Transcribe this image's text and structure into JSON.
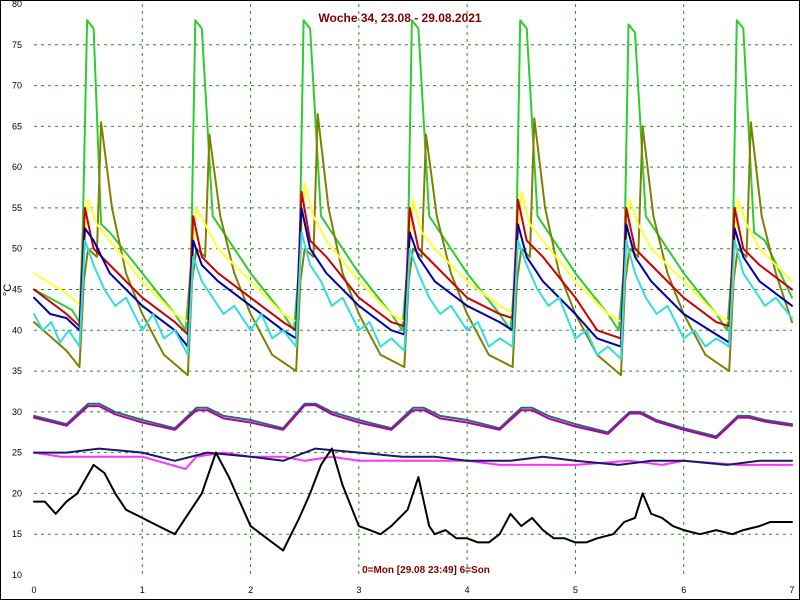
{
  "chart_data": {
    "type": "line",
    "title": "Woche 34, 23.08 - 29.08.2021",
    "xlabel": "0=Mon [29.08 23:49] 6=Son",
    "ylabel": "°C",
    "xlim": [
      0,
      7
    ],
    "ylim": [
      10,
      80
    ],
    "xticks": [
      0,
      1,
      2,
      3,
      4,
      5,
      6,
      7
    ],
    "yticks": [
      10,
      15,
      20,
      25,
      30,
      35,
      40,
      45,
      50,
      55,
      60,
      65,
      70,
      75,
      80
    ],
    "grid": true,
    "series": [
      {
        "color": "#2ecc2e",
        "x": [
          0,
          0.35,
          0.42,
          0.45,
          0.49,
          0.55,
          0.62,
          0.7,
          1,
          1.3,
          1.4,
          1.45,
          1.49,
          1.55,
          1.65,
          1.75,
          2,
          2.3,
          2.4,
          2.45,
          2.49,
          2.55,
          2.65,
          2.75,
          3,
          3.3,
          3.4,
          3.45,
          3.49,
          3.55,
          3.65,
          3.75,
          4,
          4.3,
          4.4,
          4.45,
          4.49,
          4.55,
          4.65,
          4.75,
          5,
          5.3,
          5.4,
          5.45,
          5.49,
          5.55,
          5.65,
          5.75,
          6,
          6.3,
          6.4,
          6.45,
          6.49,
          6.55,
          6.65,
          6.75,
          7
        ],
        "y": [
          45,
          42.5,
          41,
          52,
          78,
          77,
          53,
          52,
          47,
          42,
          40,
          48,
          78,
          77,
          54,
          52,
          47,
          42,
          40,
          48,
          78,
          77,
          54,
          52,
          47,
          42,
          40,
          48,
          78,
          77,
          54,
          52,
          47,
          42,
          40,
          48,
          78,
          77,
          54,
          52,
          47,
          42,
          40,
          48,
          77.5,
          76.5,
          54,
          52,
          47,
          42,
          40,
          48,
          78,
          77,
          52,
          51,
          44
        ]
      },
      {
        "color": "#808000",
        "x": [
          0,
          0.3,
          0.42,
          0.46,
          0.5,
          0.58,
          0.62,
          0.72,
          0.85,
          1,
          1.2,
          1.42,
          1.46,
          1.5,
          1.58,
          1.62,
          1.72,
          1.85,
          2,
          2.2,
          2.42,
          2.46,
          2.5,
          2.58,
          2.62,
          2.72,
          2.85,
          3,
          3.2,
          3.42,
          3.46,
          3.5,
          3.58,
          3.62,
          3.72,
          3.85,
          4,
          4.2,
          4.42,
          4.46,
          4.5,
          4.58,
          4.62,
          4.72,
          4.85,
          5,
          5.2,
          5.42,
          5.46,
          5.5,
          5.58,
          5.62,
          5.72,
          5.85,
          6,
          6.2,
          6.42,
          6.46,
          6.5,
          6.58,
          6.62,
          6.72,
          6.85,
          7
        ],
        "y": [
          41,
          37.5,
          35.5,
          46,
          50,
          49,
          65.5,
          55,
          47,
          42,
          37,
          34.5,
          46,
          50,
          49,
          64,
          54,
          47,
          42,
          37,
          35,
          46,
          50,
          49,
          66.5,
          55,
          47,
          42,
          37,
          35.5,
          46,
          50,
          49,
          64,
          54,
          47,
          42,
          37,
          35.5,
          46,
          50,
          49,
          66,
          55,
          47,
          42,
          37,
          34.5,
          46,
          50,
          49,
          65,
          54,
          47,
          42,
          37,
          35,
          46,
          50,
          49,
          65.5,
          54,
          47,
          41
        ]
      },
      {
        "color": "#ffff33",
        "x": [
          0,
          0.3,
          0.43,
          0.5,
          0.58,
          0.7,
          1,
          1.3,
          1.43,
          1.5,
          1.58,
          1.7,
          2,
          2.3,
          2.43,
          2.5,
          2.58,
          2.7,
          3,
          3.3,
          3.43,
          3.5,
          3.58,
          3.7,
          4,
          4.3,
          4.43,
          4.5,
          4.58,
          4.7,
          5,
          5.3,
          5.43,
          5.5,
          5.58,
          5.7,
          6,
          6.3,
          6.43,
          6.5,
          6.58,
          6.7,
          7
        ],
        "y": [
          47,
          44.5,
          43,
          56,
          53,
          51,
          46,
          42,
          41,
          55,
          53,
          50,
          46,
          42,
          41,
          58,
          54,
          51,
          46,
          42,
          41,
          56,
          52,
          50,
          46,
          43,
          42,
          57,
          53,
          51,
          46,
          42,
          41,
          56,
          53,
          50,
          46,
          42,
          41,
          56,
          53,
          50,
          46
        ]
      },
      {
        "color": "#cc0000",
        "x": [
          0,
          0.3,
          0.42,
          0.47,
          0.55,
          0.7,
          1,
          1.3,
          1.42,
          1.47,
          1.55,
          1.7,
          2,
          2.3,
          2.42,
          2.47,
          2.55,
          2.7,
          3,
          3.3,
          3.42,
          3.47,
          3.55,
          3.7,
          4,
          4.3,
          4.42,
          4.47,
          4.55,
          4.7,
          5,
          5.2,
          5.42,
          5.47,
          5.55,
          5.7,
          6,
          6.3,
          6.42,
          6.47,
          6.55,
          6.7,
          7
        ],
        "y": [
          45,
          42,
          40.5,
          55,
          50,
          48,
          44,
          41,
          39.5,
          54,
          49,
          47,
          44,
          41,
          40,
          57,
          51,
          49,
          44,
          41,
          40.5,
          55,
          50,
          48,
          44,
          42,
          41.5,
          56,
          51,
          49,
          44,
          40,
          39,
          55,
          50,
          48,
          44,
          41,
          40.5,
          55,
          50,
          48,
          45
        ]
      },
      {
        "color": "#0000aa",
        "x": [
          0,
          0.15,
          0.3,
          0.42,
          0.47,
          0.55,
          0.7,
          1,
          1.3,
          1.42,
          1.47,
          1.55,
          1.7,
          2,
          2.3,
          2.42,
          2.47,
          2.55,
          2.7,
          3,
          3.3,
          3.42,
          3.47,
          3.55,
          3.7,
          4,
          4.3,
          4.42,
          4.47,
          4.55,
          4.7,
          5,
          5.2,
          5.42,
          5.47,
          5.55,
          5.7,
          6,
          6.3,
          6.42,
          6.47,
          6.55,
          6.7,
          7
        ],
        "y": [
          44,
          42,
          41.5,
          40,
          52.5,
          51,
          47,
          43,
          40,
          38,
          51,
          48,
          46,
          43,
          40,
          39,
          55,
          50,
          47,
          43,
          40,
          39.5,
          52,
          49,
          46,
          43,
          41,
          40,
          53,
          49,
          46,
          42,
          39,
          38,
          53,
          49,
          46,
          42,
          39.5,
          38.5,
          52.5,
          49,
          46,
          43
        ]
      },
      {
        "color": "#33dddd",
        "x": [
          0,
          0.08,
          0.16,
          0.24,
          0.32,
          0.42,
          0.47,
          0.55,
          0.65,
          0.75,
          0.85,
          1,
          1.1,
          1.2,
          1.3,
          1.42,
          1.47,
          1.55,
          1.65,
          1.75,
          1.85,
          2,
          2.1,
          2.2,
          2.3,
          2.42,
          2.47,
          2.55,
          2.65,
          2.75,
          2.85,
          3,
          3.1,
          3.2,
          3.3,
          3.42,
          3.47,
          3.55,
          3.65,
          3.75,
          3.85,
          4,
          4.1,
          4.2,
          4.3,
          4.42,
          4.47,
          4.55,
          4.65,
          4.75,
          4.85,
          5,
          5.1,
          5.2,
          5.3,
          5.42,
          5.47,
          5.55,
          5.65,
          5.75,
          5.85,
          6,
          6.1,
          6.2,
          6.3,
          6.42,
          6.47,
          6.55,
          6.65,
          6.75,
          6.85,
          7
        ],
        "y": [
          42,
          40,
          41,
          38.5,
          40,
          38,
          51,
          48,
          45,
          43,
          44,
          40,
          42,
          39,
          40,
          37,
          49,
          46,
          44,
          42,
          43,
          40,
          42,
          39,
          40,
          38,
          52,
          48,
          46,
          43,
          44,
          40,
          41,
          38,
          39,
          37.5,
          50,
          47,
          44,
          42,
          43,
          40,
          41,
          38,
          39,
          38,
          51,
          48,
          45,
          43,
          44,
          39,
          40,
          37,
          38,
          36.5,
          51,
          47,
          44,
          42,
          43,
          39,
          40,
          38,
          39,
          38,
          51,
          47,
          45,
          43,
          44,
          41.5
        ]
      },
      {
        "color": "#336666",
        "x": [
          0,
          0.3,
          0.5,
          0.6,
          0.75,
          1,
          1.3,
          1.5,
          1.6,
          1.75,
          2,
          2.3,
          2.5,
          2.6,
          2.75,
          3,
          3.3,
          3.5,
          3.6,
          3.75,
          4,
          4.3,
          4.5,
          4.6,
          4.75,
          5,
          5.3,
          5.5,
          5.6,
          5.75,
          6,
          6.3,
          6.5,
          6.6,
          6.75,
          7
        ],
        "y": [
          29.5,
          28.5,
          31,
          31,
          30,
          29,
          28,
          30.5,
          30.5,
          29.5,
          29,
          28,
          31,
          31,
          30,
          29,
          28,
          30.5,
          30.5,
          29.5,
          29,
          28,
          30.5,
          30.5,
          29.5,
          28.5,
          27.5,
          30,
          30,
          29,
          28,
          27,
          29.5,
          29.5,
          29,
          28.5
        ]
      },
      {
        "color": "#aa00aa",
        "x": [
          0,
          0.3,
          0.5,
          0.6,
          0.75,
          1,
          1.3,
          1.5,
          1.6,
          1.75,
          2,
          2.3,
          2.5,
          2.6,
          2.75,
          3,
          3.3,
          3.5,
          3.6,
          3.75,
          4,
          4.3,
          4.5,
          4.6,
          4.75,
          5,
          5.3,
          5.5,
          5.6,
          5.75,
          6,
          6.3,
          6.5,
          6.6,
          6.75,
          7
        ],
        "y": [
          29.3,
          28.3,
          30.7,
          30.7,
          29.7,
          28.7,
          27.8,
          30.2,
          30.2,
          29.2,
          28.7,
          27.8,
          30.8,
          30.8,
          29.7,
          28.7,
          27.8,
          30.2,
          30.2,
          29.2,
          28.7,
          27.8,
          30.2,
          30.2,
          29.2,
          28.2,
          27.3,
          29.8,
          29.8,
          28.8,
          27.8,
          26.8,
          29.3,
          29.3,
          28.8,
          28.3
        ]
      },
      {
        "color": "#ff33ff",
        "x": [
          0,
          0.25,
          0.5,
          0.75,
          1,
          1.4,
          1.5,
          1.75,
          2,
          2.3,
          2.5,
          2.75,
          3,
          3.5,
          4,
          4.3,
          4.5,
          5,
          5.5,
          5.8,
          6,
          6.5,
          7
        ],
        "y": [
          25,
          24.5,
          24.5,
          24.5,
          24.5,
          23,
          24.5,
          25,
          24.5,
          24.5,
          24,
          24.5,
          24,
          24,
          24,
          23.5,
          23.5,
          23.5,
          24,
          23.5,
          24,
          23.5,
          23.5
        ]
      },
      {
        "color": "#1a1a66",
        "x": [
          0,
          0.3,
          0.6,
          1,
          1.3,
          1.6,
          2,
          2.3,
          2.6,
          3,
          3.4,
          3.7,
          4,
          4.4,
          4.7,
          5,
          5.4,
          5.7,
          6,
          6.4,
          6.7,
          7
        ],
        "y": [
          25,
          25,
          25.5,
          25,
          24,
          25,
          24.5,
          24,
          25.5,
          25,
          24.5,
          24.5,
          24,
          24,
          24.5,
          24,
          23.5,
          24,
          24,
          23.5,
          24,
          24
        ]
      },
      {
        "color": "#000000",
        "x": [
          0,
          0.1,
          0.2,
          0.3,
          0.4,
          0.55,
          0.65,
          0.75,
          0.85,
          1,
          1.15,
          1.3,
          1.45,
          1.55,
          1.68,
          1.8,
          1.9,
          2,
          2.15,
          2.3,
          2.45,
          2.55,
          2.65,
          2.75,
          2.85,
          3,
          3.1,
          3.2,
          3.3,
          3.45,
          3.55,
          3.65,
          3.7,
          3.8,
          3.9,
          4,
          4.1,
          4.2,
          4.3,
          4.4,
          4.5,
          4.6,
          4.7,
          4.8,
          4.9,
          5,
          5.1,
          5.2,
          5.35,
          5.45,
          5.55,
          5.62,
          5.7,
          5.8,
          5.9,
          6,
          6.15,
          6.3,
          6.45,
          6.55,
          6.7,
          6.8,
          6.9,
          7
        ],
        "y": [
          19,
          19,
          17.5,
          19,
          20,
          23.5,
          22.5,
          20,
          18,
          17,
          16,
          15,
          18,
          20,
          25,
          22,
          19,
          16,
          14.5,
          13,
          17,
          20,
          23.5,
          25.5,
          21,
          16,
          15.5,
          15,
          16,
          18,
          22,
          16,
          15,
          15.5,
          14.5,
          14.5,
          14,
          14,
          15,
          17.5,
          16,
          17,
          15.5,
          14.5,
          14.5,
          14,
          14,
          14.5,
          15,
          16.5,
          17,
          20,
          17.5,
          17,
          16,
          15.5,
          15,
          15.5,
          15,
          15.5,
          16,
          16.5,
          16.5,
          16.5
        ]
      }
    ]
  }
}
